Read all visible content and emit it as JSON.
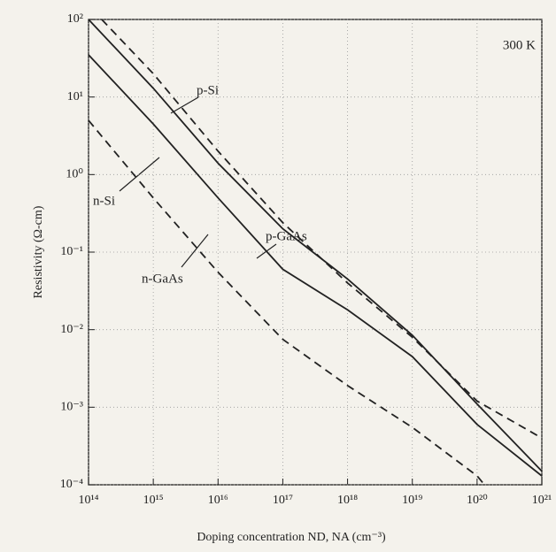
{
  "chart_data": {
    "type": "line",
    "x_label": "Doping concentration ND, NA (cm⁻³)",
    "y_label": "Resistivity (Ω-cm)",
    "xlog": true,
    "ylog": true,
    "grid": true,
    "xlim": [
      100000000000000.0,
      1e+21
    ],
    "ylim": [
      0.0001,
      100
    ],
    "xticks": [
      {
        "value": 100000000000000.0,
        "label": "10¹⁴"
      },
      {
        "value": 1000000000000000.0,
        "label": "10¹⁵"
      },
      {
        "value": 1e+16,
        "label": "10¹⁶"
      },
      {
        "value": 1e+17,
        "label": "10¹⁷"
      },
      {
        "value": 1e+18,
        "label": "10¹⁸"
      },
      {
        "value": 1e+19,
        "label": "10¹⁹"
      },
      {
        "value": 1e+20,
        "label": "10²⁰"
      },
      {
        "value": 1e+21,
        "label": "10²¹"
      }
    ],
    "yticks": [
      {
        "value": 0.0001,
        "label": "10⁻⁴"
      },
      {
        "value": 0.001,
        "label": "10⁻³"
      },
      {
        "value": 0.01,
        "label": "10⁻²"
      },
      {
        "value": 0.1,
        "label": "10⁻¹"
      },
      {
        "value": 1,
        "label": "10⁰"
      },
      {
        "value": 10,
        "label": "10¹"
      },
      {
        "value": 100,
        "label": "10²"
      }
    ],
    "annotations": [
      "300 K",
      "p-Si",
      "p-GaAs",
      "n-Si",
      "n-GaAs"
    ],
    "series": [
      {
        "name": "p-Si",
        "color": "#222222",
        "dashed": false,
        "x": [
          100000000000000.0,
          1000000000000000.0,
          1e+16,
          1e+17,
          1e+18,
          1e+19,
          1e+20,
          1e+21
        ],
        "values": [
          100,
          13,
          1.4,
          0.2,
          0.045,
          0.0085,
          0.0011,
          0.00015
        ]
      },
      {
        "name": "n-Si",
        "color": "#222222",
        "dashed": false,
        "x": [
          100000000000000.0,
          1000000000000000.0,
          1e+16,
          1e+17,
          1e+18,
          1e+19,
          1e+20,
          1e+21
        ],
        "values": [
          35,
          4.5,
          0.5,
          0.06,
          0.018,
          0.0045,
          0.0006,
          0.00013
        ]
      },
      {
        "name": "p-GaAs",
        "color": "#222222",
        "dashed": true,
        "x": [
          160000000000000.0,
          1000000000000000.0,
          1e+16,
          1e+17,
          1e+18,
          1e+19,
          1e+20,
          1e+21
        ],
        "values": [
          100,
          20,
          2,
          0.24,
          0.04,
          0.008,
          0.0012,
          0.0004
        ]
      },
      {
        "name": "n-GaAs",
        "color": "#222222",
        "dashed": true,
        "x": [
          100000000000000.0,
          1000000000000000.0,
          1e+16,
          1e+17,
          1e+18,
          1e+19,
          1e+20,
          1.3e+20
        ],
        "values": [
          5,
          0.5,
          0.055,
          0.0075,
          0.0019,
          0.00055,
          0.00013,
          0.0001
        ]
      }
    ]
  }
}
